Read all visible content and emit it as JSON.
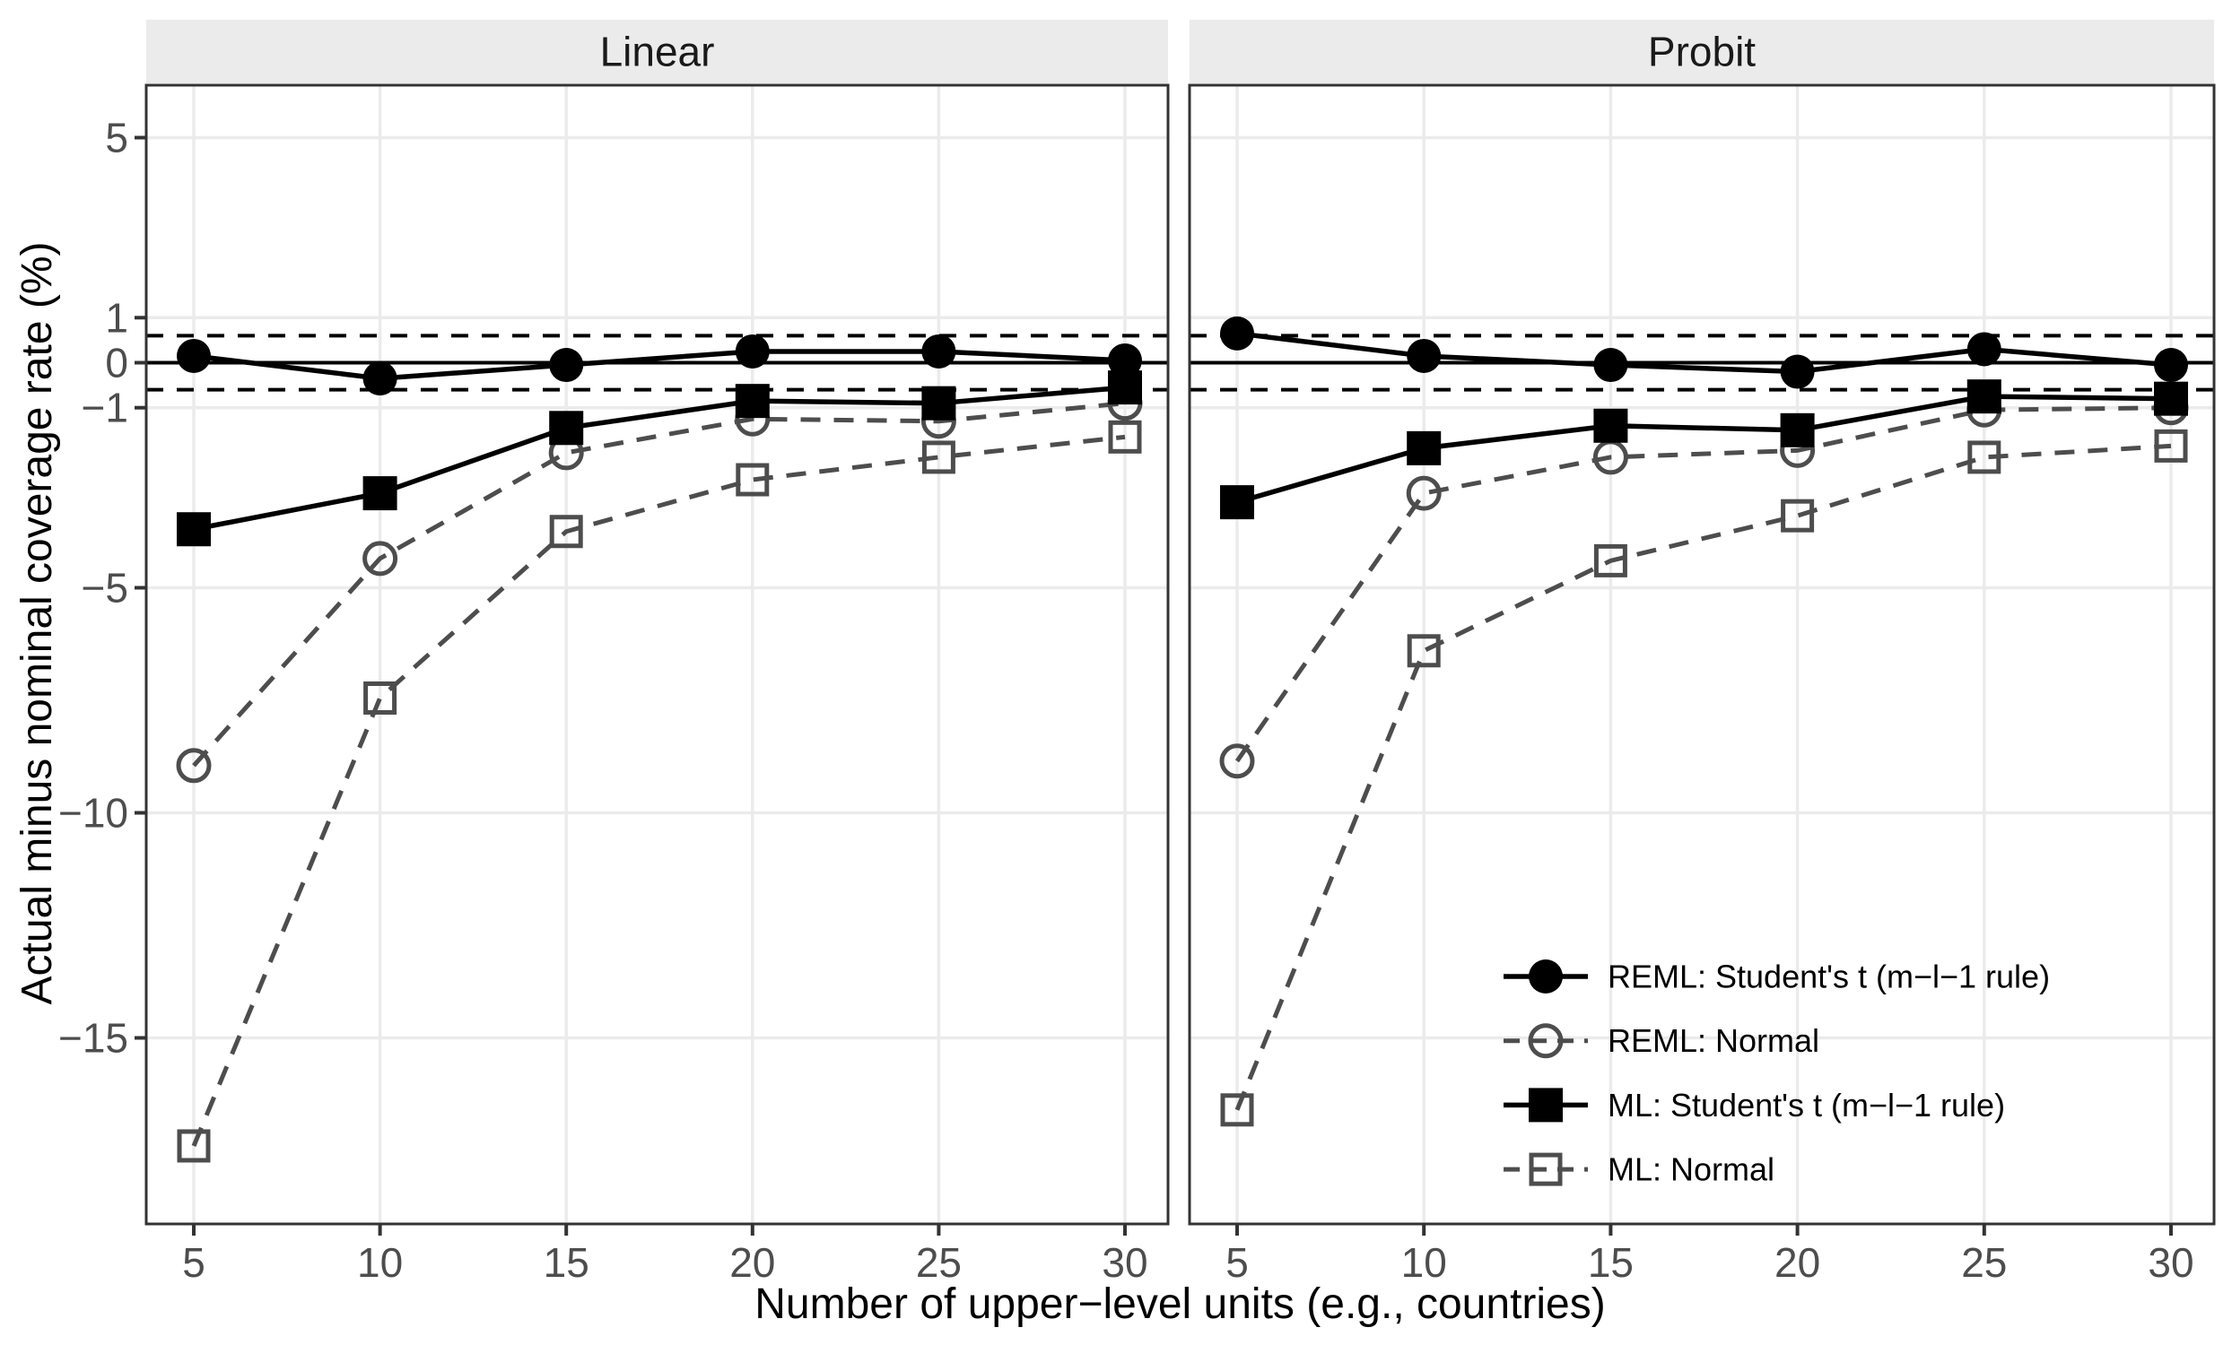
{
  "figure": {
    "background": "#ffffff"
  },
  "y_axis": {
    "title": "Actual minus nominal coverage rate (%)",
    "tick_labels": [
      "5",
      "1",
      "0",
      "−1",
      "−5",
      "−10",
      "−15"
    ],
    "tick_values": [
      5,
      1,
      0,
      -1,
      -5,
      -10,
      -15
    ]
  },
  "x_axis": {
    "title": "Number of upper−level units (e.g., countries)",
    "tick_labels": [
      "5",
      "10",
      "15",
      "20",
      "25",
      "30"
    ],
    "tick_values": [
      5,
      10,
      15,
      20,
      25,
      30
    ]
  },
  "legend": {
    "items": [
      {
        "label": "REML: Student's t (m−l−1 rule)",
        "marker": "filled-circle",
        "line": "solid",
        "color": "#000000"
      },
      {
        "label": "REML: Normal",
        "marker": "open-circle",
        "line": "dashed",
        "color": "#4d4d4d"
      },
      {
        "label": "ML: Student's t (m−l−1 rule)",
        "marker": "filled-square",
        "line": "solid",
        "color": "#000000"
      },
      {
        "label": "ML: Normal",
        "marker": "open-square",
        "line": "dashed",
        "color": "#4d4d4d"
      }
    ]
  },
  "reference_lines": {
    "solid_at": 0,
    "dashed_at": [
      0.6,
      -0.6
    ]
  },
  "colors": {
    "series_black": "#000000",
    "series_gray": "#4d4d4d",
    "gridline": "#ebebeb",
    "panel_border": "#333333",
    "tick_label": "#4d4d4d",
    "strip_bg": "#ebebeb",
    "strip_text": "#1a1a1a",
    "title_text": "#000000"
  },
  "chart_data": {
    "type": "line",
    "x": [
      5,
      10,
      15,
      20,
      25,
      30
    ],
    "xlabel": "Number of upper−level units (e.g., countries)",
    "ylabel": "Actual minus nominal coverage rate (%)",
    "y_ticks": [
      5,
      1,
      0,
      -1,
      -5,
      -10,
      -15
    ],
    "ylim": [
      -19.1,
      6.2
    ],
    "grid": "major-only",
    "legend_position": "inside bottom-right of Probit panel",
    "reference_lines": {
      "solid": 0,
      "dashed": [
        0.6,
        -0.6
      ]
    },
    "facets": [
      {
        "label": "Linear",
        "series": [
          {
            "name": "REML: Student's t (m−l−1 rule)",
            "marker": "filled-circle",
            "line": "solid",
            "color": "#000000",
            "values": [
              0.15,
              -0.35,
              -0.05,
              0.25,
              0.25,
              0.05
            ]
          },
          {
            "name": "REML: Normal",
            "marker": "open-circle",
            "line": "dashed",
            "color": "#4d4d4d",
            "values": [
              -8.95,
              -4.35,
              -2.0,
              -1.25,
              -1.3,
              -0.9
            ]
          },
          {
            "name": "ML: Student's t (m−l−1 rule)",
            "marker": "filled-square",
            "line": "solid",
            "color": "#000000",
            "values": [
              -3.7,
              -2.9,
              -1.45,
              -0.85,
              -0.9,
              -0.55
            ]
          },
          {
            "name": "ML: Normal",
            "marker": "open-square",
            "line": "dashed",
            "color": "#4d4d4d",
            "values": [
              -17.4,
              -7.45,
              -3.75,
              -2.6,
              -2.1,
              -1.65
            ]
          }
        ]
      },
      {
        "label": "Probit",
        "series": [
          {
            "name": "REML: Student's t (m−l−1 rule)",
            "marker": "filled-circle",
            "line": "solid",
            "color": "#000000",
            "values": [
              0.65,
              0.15,
              -0.05,
              -0.2,
              0.3,
              -0.05
            ]
          },
          {
            "name": "REML: Normal",
            "marker": "open-circle",
            "line": "dashed",
            "color": "#4d4d4d",
            "values": [
              -8.85,
              -2.9,
              -2.1,
              -1.95,
              -1.05,
              -1.0
            ]
          },
          {
            "name": "ML: Student's t (m−l−1 rule)",
            "marker": "filled-square",
            "line": "solid",
            "color": "#000000",
            "values": [
              -3.1,
              -1.9,
              -1.4,
              -1.5,
              -0.75,
              -0.8
            ]
          },
          {
            "name": "ML: Normal",
            "marker": "open-square",
            "line": "dashed",
            "color": "#4d4d4d",
            "values": [
              -16.6,
              -6.4,
              -4.4,
              -3.4,
              -2.1,
              -1.85
            ]
          }
        ]
      }
    ]
  }
}
